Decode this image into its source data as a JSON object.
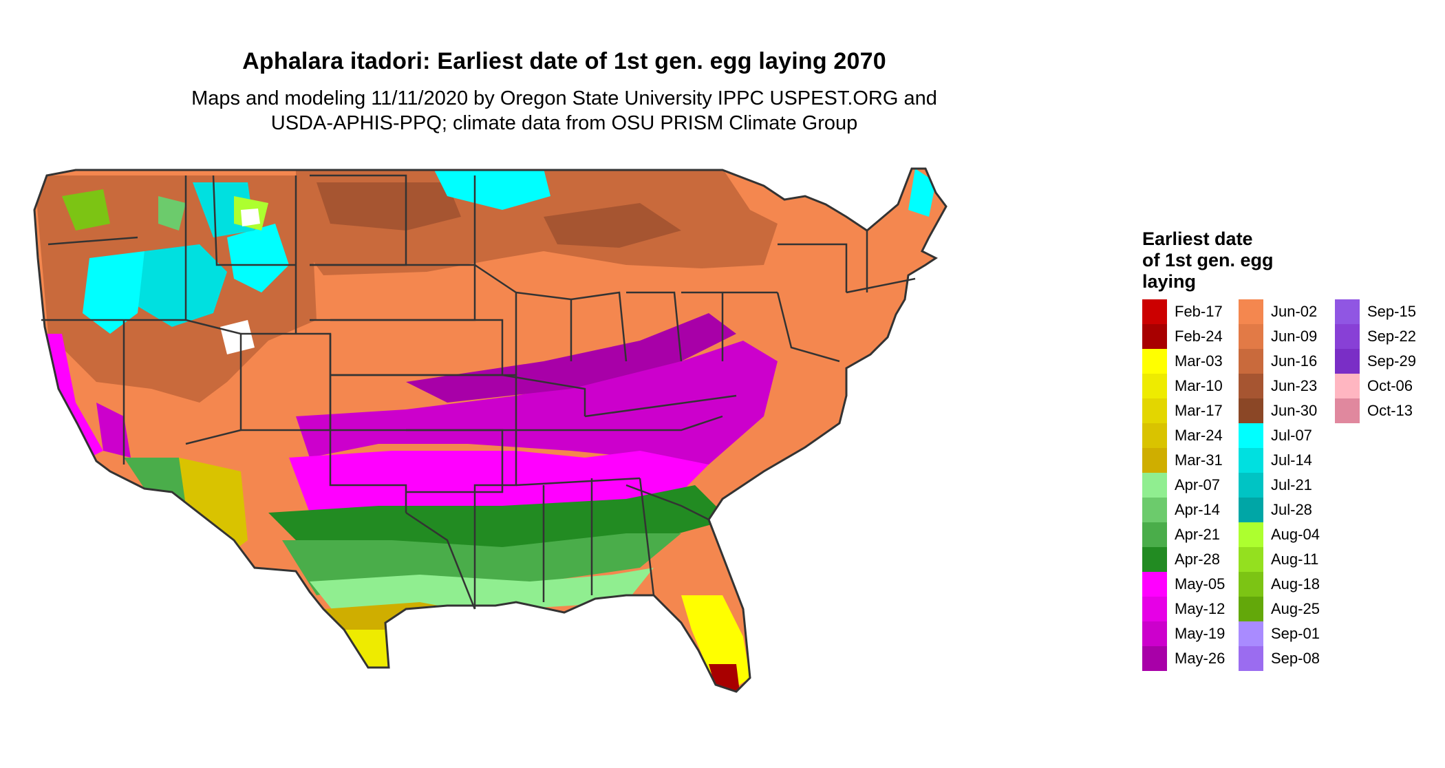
{
  "title": "Aphalara itadori: Earliest date of 1st gen. egg laying 2070",
  "subtitle": [
    "Maps and modeling 11/11/2020 by Oregon State University IPPC USPEST.ORG and",
    "USDA-APHIS-PPQ; climate data from OSU PRISM Climate Group"
  ],
  "legend": {
    "title": [
      "Earliest date",
      "of 1st gen. egg",
      "laying"
    ],
    "columns": [
      [
        {
          "label": "Feb-17",
          "color": "#cc0000"
        },
        {
          "label": "Feb-24",
          "color": "#a80000"
        },
        {
          "label": "Mar-03",
          "color": "#ffff00"
        },
        {
          "label": "Mar-10",
          "color": "#eeeb00"
        },
        {
          "label": "Mar-17",
          "color": "#e3d600"
        },
        {
          "label": "Mar-24",
          "color": "#d9c300"
        },
        {
          "label": "Mar-31",
          "color": "#cfae00"
        },
        {
          "label": "Apr-07",
          "color": "#90ee90"
        },
        {
          "label": "Apr-14",
          "color": "#6ccb6c"
        },
        {
          "label": "Apr-21",
          "color": "#4aad4a"
        },
        {
          "label": "Apr-28",
          "color": "#228b22"
        },
        {
          "label": "May-05",
          "color": "#ff00ff"
        },
        {
          "label": "May-12",
          "color": "#e600e6"
        },
        {
          "label": "May-19",
          "color": "#cc00cc"
        },
        {
          "label": "May-26",
          "color": "#a800a8"
        }
      ],
      [
        {
          "label": "Jun-02",
          "color": "#f4874f"
        },
        {
          "label": "Jun-09",
          "color": "#e27a46"
        },
        {
          "label": "Jun-16",
          "color": "#c96a3c"
        },
        {
          "label": "Jun-23",
          "color": "#a65531"
        },
        {
          "label": "Jun-30",
          "color": "#8b4726"
        },
        {
          "label": "Jul-07",
          "color": "#00ffff"
        },
        {
          "label": "Jul-14",
          "color": "#00e0e0"
        },
        {
          "label": "Jul-21",
          "color": "#00c4c4"
        },
        {
          "label": "Jul-28",
          "color": "#00a6a6"
        },
        {
          "label": "Aug-04",
          "color": "#adff2f"
        },
        {
          "label": "Aug-11",
          "color": "#94e01f"
        },
        {
          "label": "Aug-18",
          "color": "#7cc414"
        },
        {
          "label": "Aug-25",
          "color": "#63a80a"
        },
        {
          "label": "Sep-01",
          "color": "#a98bff"
        },
        {
          "label": "Sep-08",
          "color": "#9b6cf0"
        }
      ],
      [
        {
          "label": "Sep-15",
          "color": "#9056e3"
        },
        {
          "label": "Sep-22",
          "color": "#8840d6"
        },
        {
          "label": "Sep-29",
          "color": "#7a2ec6"
        },
        {
          "label": "Oct-06",
          "color": "#ffb6c1"
        },
        {
          "label": "Oct-13",
          "color": "#e0889e"
        }
      ]
    ]
  }
}
